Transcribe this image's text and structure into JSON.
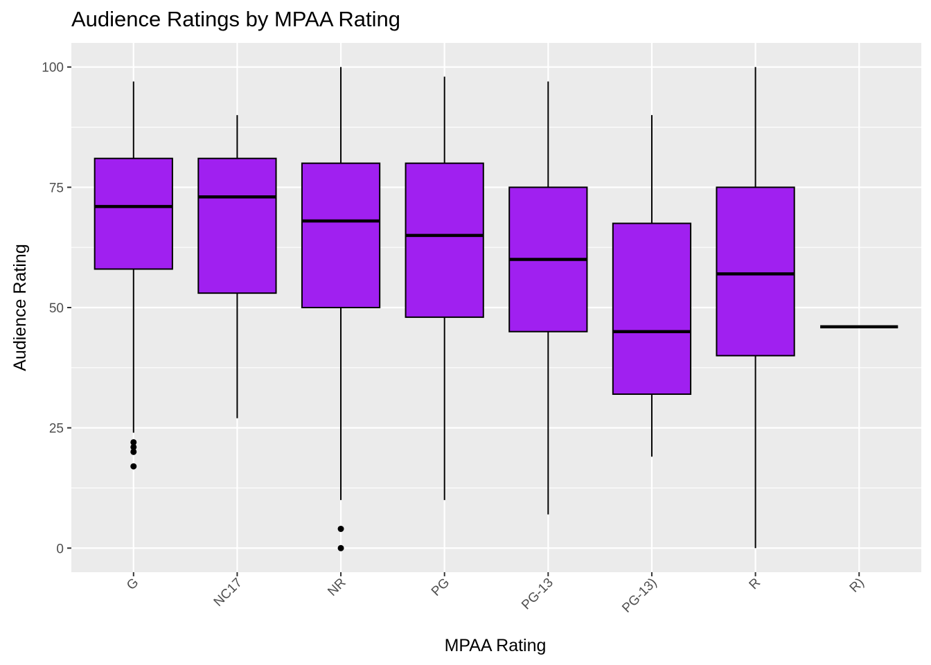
{
  "chart_data": {
    "type": "boxplot",
    "title": "Audience Ratings by MPAA Rating",
    "xlabel": "MPAA Rating",
    "ylabel": "Audience Rating",
    "ylim": [
      -5,
      105
    ],
    "yticks": [
      0,
      25,
      50,
      75,
      100
    ],
    "grid": true,
    "legend": "none",
    "colors": {
      "fill": "#a020f0",
      "panel": "#ebebeb",
      "grid": "#ffffff",
      "outline": "#000000"
    },
    "categories": [
      "G",
      "NC17",
      "NR",
      "PG",
      "PG-13",
      "PG-13)",
      "R",
      "R)"
    ],
    "boxes": [
      {
        "category": "G",
        "whisker_low": 24,
        "q1": 58,
        "median": 71,
        "q3": 81,
        "whisker_high": 97,
        "outliers": [
          22,
          21,
          20,
          17
        ]
      },
      {
        "category": "NC17",
        "whisker_low": 27,
        "q1": 53,
        "median": 73,
        "q3": 81,
        "whisker_high": 90,
        "outliers": []
      },
      {
        "category": "NR",
        "whisker_low": 10,
        "q1": 50,
        "median": 68,
        "q3": 80,
        "whisker_high": 100,
        "outliers": [
          4,
          0
        ]
      },
      {
        "category": "PG",
        "whisker_low": 10,
        "q1": 48,
        "median": 65,
        "q3": 80,
        "whisker_high": 98,
        "outliers": []
      },
      {
        "category": "PG-13",
        "whisker_low": 7,
        "q1": 45,
        "median": 60,
        "q3": 75,
        "whisker_high": 97,
        "outliers": []
      },
      {
        "category": "PG-13)",
        "whisker_low": 19,
        "q1": 32,
        "median": 45,
        "q3": 67.5,
        "whisker_high": 90,
        "outliers": []
      },
      {
        "category": "R",
        "whisker_low": 0,
        "q1": 40,
        "median": 57,
        "q3": 75,
        "whisker_high": 100,
        "outliers": []
      },
      {
        "category": "R)",
        "whisker_low": 46,
        "q1": 46,
        "median": 46,
        "q3": 46,
        "whisker_high": 46,
        "outliers": []
      }
    ]
  }
}
